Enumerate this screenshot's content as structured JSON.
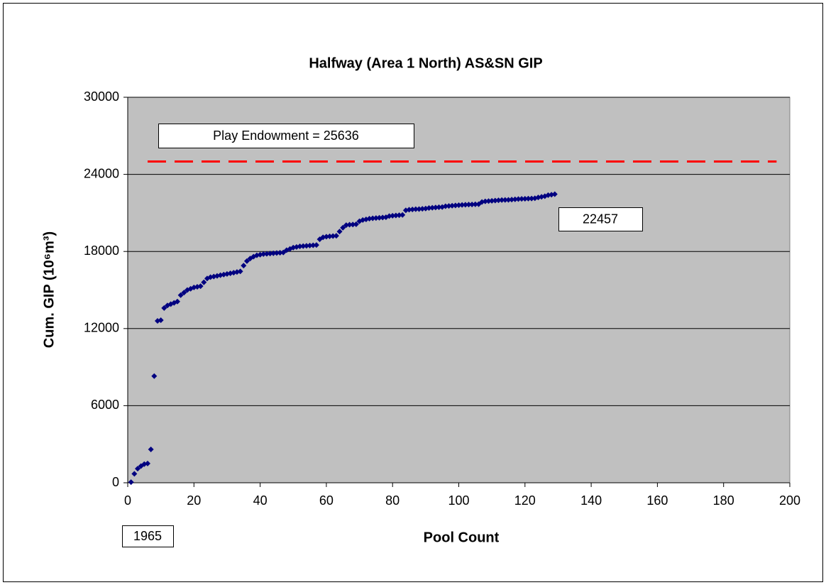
{
  "chart_data": {
    "type": "scatter",
    "title": "Halfway (Area 1 North) AS&SN GIP",
    "x_label": "Pool Count",
    "y_label": "Cum. GIP (10⁶m³)",
    "annotations": [
      "Play Endowment  =  25636",
      "22457",
      "1965"
    ],
    "xlim": [
      0,
      200
    ],
    "xticks": [
      0,
      20,
      40,
      60,
      80,
      100,
      120,
      140,
      160,
      180,
      200
    ],
    "ylim": [
      0,
      30000
    ],
    "yticks": [
      0,
      6000,
      12000,
      18000,
      24000,
      30000
    ],
    "grid": true,
    "reference_line": {
      "x": [
        6,
        196
      ],
      "y": 25000,
      "color": "#ff0000"
    },
    "series": [
      {
        "color": "#000080",
        "x": [
          1,
          2,
          3,
          4,
          5,
          6,
          7,
          8,
          9,
          10,
          11,
          12,
          13,
          14,
          15,
          16,
          17,
          18,
          19,
          20,
          21,
          22,
          23,
          24,
          25,
          26,
          27,
          28,
          29,
          30,
          31,
          32,
          33,
          34,
          35,
          36,
          37,
          38,
          39,
          40,
          41,
          42,
          43,
          44,
          45,
          46,
          47,
          48,
          49,
          50,
          51,
          52,
          53,
          54,
          55,
          56,
          57,
          58,
          59,
          60,
          61,
          62,
          63,
          64,
          65,
          66,
          67,
          68,
          69,
          70,
          71,
          72,
          73,
          74,
          75,
          76,
          77,
          78,
          79,
          80,
          81,
          82,
          83,
          84,
          85,
          86,
          87,
          88,
          89,
          90,
          91,
          92,
          93,
          94,
          95,
          96,
          97,
          98,
          99,
          100,
          101,
          102,
          103,
          104,
          105,
          106,
          107,
          108,
          109,
          110,
          111,
          112,
          113,
          114,
          115,
          116,
          117,
          118,
          119,
          120,
          121,
          122,
          123,
          124,
          125,
          126,
          127,
          128,
          129
        ],
        "values": [
          50,
          700,
          1100,
          1300,
          1450,
          1500,
          2600,
          8300,
          12600,
          12650,
          13600,
          13800,
          13900,
          14000,
          14100,
          14600,
          14800,
          15000,
          15100,
          15200,
          15250,
          15300,
          15600,
          15900,
          16000,
          16050,
          16100,
          16150,
          16200,
          16250,
          16300,
          16350,
          16400,
          16450,
          16900,
          17250,
          17450,
          17600,
          17700,
          17750,
          17800,
          17820,
          17840,
          17860,
          17880,
          17900,
          17920,
          18100,
          18200,
          18300,
          18350,
          18400,
          18420,
          18440,
          18460,
          18480,
          18500,
          18950,
          19100,
          19150,
          19180,
          19200,
          19220,
          19550,
          19850,
          20050,
          20080,
          20100,
          20120,
          20350,
          20450,
          20500,
          20550,
          20580,
          20600,
          20620,
          20640,
          20660,
          20750,
          20780,
          20800,
          20820,
          20840,
          21200,
          21250,
          21270,
          21290,
          21300,
          21320,
          21340,
          21380,
          21400,
          21420,
          21440,
          21460,
          21520,
          21540,
          21560,
          21580,
          21600,
          21620,
          21640,
          21650,
          21660,
          21670,
          21680,
          21850,
          21900,
          21920,
          21940,
          21960,
          21980,
          22000,
          22010,
          22020,
          22040,
          22060,
          22080,
          22090,
          22100,
          22110,
          22120,
          22140,
          22200,
          22250,
          22300,
          22380,
          22420,
          22457
        ]
      }
    ]
  }
}
